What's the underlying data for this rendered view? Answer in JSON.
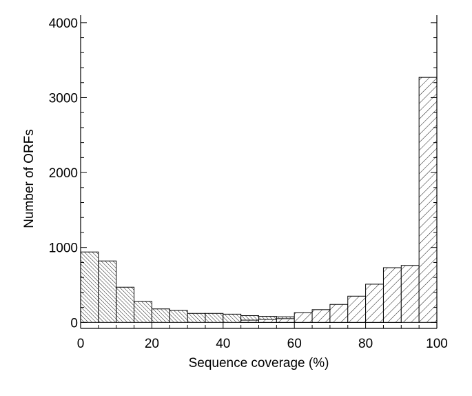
{
  "chart_data": {
    "type": "bar",
    "title": "",
    "xlabel": "Sequence coverage (%)",
    "ylabel": "Number of ORFs",
    "xlim": [
      0,
      100
    ],
    "ylim": [
      -80,
      4100
    ],
    "grid": false,
    "legend": "none",
    "bin_width": 5,
    "x_ticks": [
      0,
      20,
      40,
      60,
      80,
      100
    ],
    "x_tick_labels": [
      "0",
      "20",
      "40",
      "60",
      "80",
      "100"
    ],
    "y_ticks": [
      0,
      1000,
      2000,
      3000,
      4000
    ],
    "y_tick_labels": [
      "0",
      "1000",
      "2000",
      "3000",
      "4000"
    ],
    "categories": [
      "0-5",
      "5-10",
      "10-15",
      "15-20",
      "20-25",
      "25-30",
      "30-35",
      "35-40",
      "40-45",
      "45-50",
      "50-55",
      "55-60",
      "60-65",
      "65-70",
      "70-75",
      "75-80",
      "80-85",
      "85-90",
      "90-95",
      "95-100"
    ],
    "series": [
      {
        "pattern": "dense-backslash-hatch",
        "values": [
          940,
          820,
          470,
          280,
          180,
          160,
          120,
          120,
          110,
          90,
          80,
          75,
          60,
          55,
          40,
          30,
          10,
          5,
          0,
          0
        ]
      },
      {
        "pattern": "forward-slash-hatch",
        "values": [
          0,
          0,
          0,
          0,
          0,
          0,
          0,
          0,
          0,
          30,
          40,
          50,
          130,
          170,
          240,
          350,
          510,
          730,
          760,
          3270
        ]
      }
    ],
    "colors": {
      "stroke": "#000000",
      "background": "#ffffff"
    }
  }
}
